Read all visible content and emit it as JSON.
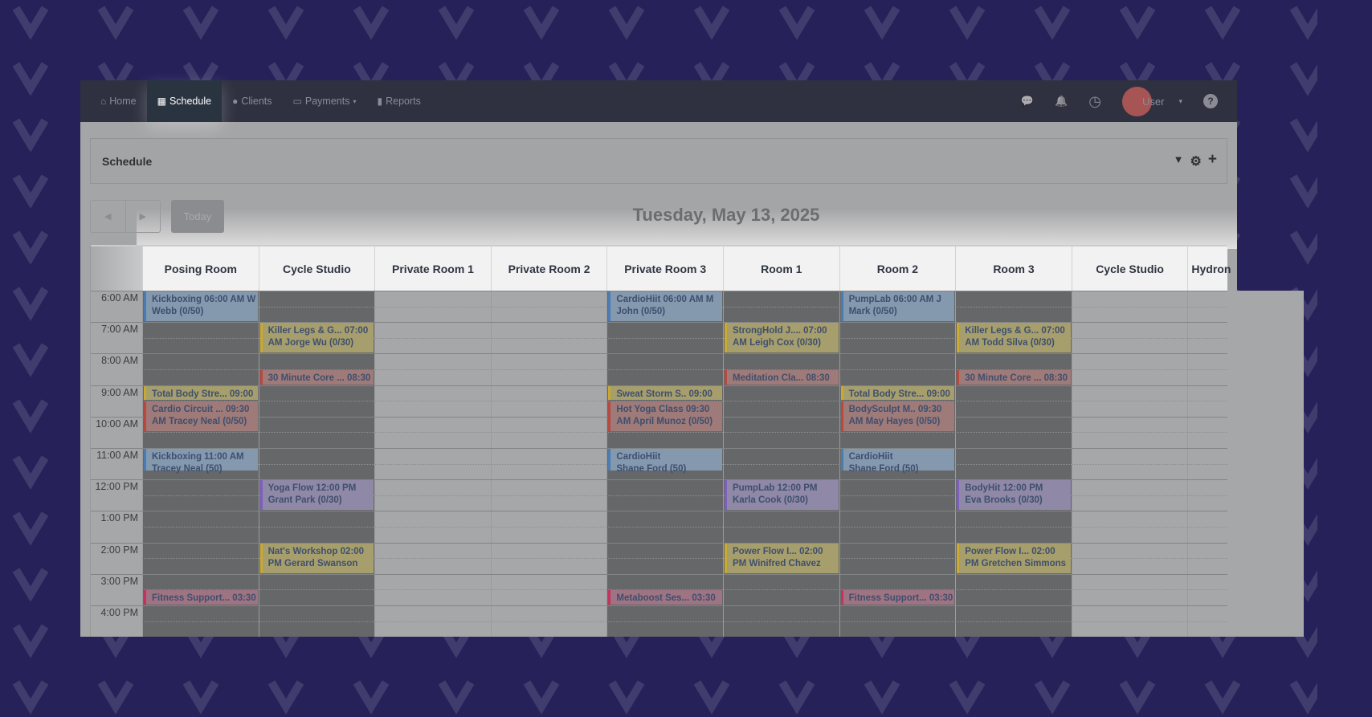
{
  "nav": {
    "items": [
      {
        "label": "Home",
        "icon": "home-icon",
        "glyph": "⌂",
        "active": false
      },
      {
        "label": "Schedule",
        "icon": "calendar-icon",
        "glyph": "▦",
        "active": true
      },
      {
        "label": "Clients",
        "icon": "user-icon",
        "glyph": "●",
        "active": false
      },
      {
        "label": "Payments",
        "icon": "credit-card-icon",
        "glyph": "▭",
        "active": false,
        "caret": "▾"
      },
      {
        "label": "Reports",
        "icon": "bar-chart-icon",
        "glyph": "▮",
        "active": false
      }
    ],
    "user": "User",
    "avatar_color": "#a65454",
    "right_icons": {
      "chat": "💬",
      "bell": "🔔",
      "clock": "◷",
      "caret": "▾",
      "help": "?"
    }
  },
  "card": {
    "title": "Schedule",
    "tools": {
      "filter": "▼",
      "settings": "⚙",
      "add": "+"
    }
  },
  "toolbar": {
    "prev": "◀",
    "next": "▶",
    "today": "Today",
    "date": "Tuesday, May 13, 2025"
  },
  "columns": [
    {
      "name": "Posing Room",
      "available": true
    },
    {
      "name": "Cycle Studio",
      "available": true
    },
    {
      "name": "Private Room 1",
      "available": false
    },
    {
      "name": "Private Room 2",
      "available": false
    },
    {
      "name": "Private Room 3",
      "available": true
    },
    {
      "name": "Room 1",
      "available": true
    },
    {
      "name": "Room 2",
      "available": true
    },
    {
      "name": "Room 3",
      "available": true
    },
    {
      "name": "Cycle Studio",
      "available": false
    },
    {
      "name": "Hydron",
      "available": false
    }
  ],
  "times": [
    "6:00 AM",
    "7:00 AM",
    "8:00 AM",
    "9:00 AM",
    "10:00 AM",
    "11:00 AM",
    "12:00 PM",
    "1:00 PM",
    "2:00 PM",
    "3:00 PM",
    "4:00 PM"
  ],
  "colors": {
    "blue": {
      "bg": "#8498ae",
      "border": "#4a7cb4"
    },
    "yellow": {
      "bg": "#a69e6c",
      "border": "#c9a92e"
    },
    "red": {
      "bg": "#9e7a79",
      "border": "#b9483f"
    },
    "purple": {
      "bg": "#8f88a6",
      "border": "#7e5fc0"
    },
    "pink": {
      "bg": "#9e7382",
      "border": "#c4325e"
    }
  },
  "events": [
    {
      "col": 0,
      "start": "06:00",
      "end": "07:00",
      "color": "blue",
      "lines": [
        "Kickboxing 06:00 AM W",
        "Webb (0/50)"
      ]
    },
    {
      "col": 0,
      "start": "09:00",
      "end": "09:30",
      "color": "yellow",
      "lines": [
        "Total Body Stre... 09:00"
      ]
    },
    {
      "col": 0,
      "start": "09:30",
      "end": "10:30",
      "color": "red",
      "lines": [
        "Cardio Circuit ... 09:30",
        "AM Tracey Neal  (0/50)"
      ]
    },
    {
      "col": 0,
      "start": "11:00",
      "end": "11:45",
      "color": "blue",
      "lines": [
        "Kickboxing 11:00 AM",
        "Tracey Neal  (50)"
      ]
    },
    {
      "col": 0,
      "start": "15:30",
      "end": "16:00",
      "color": "pink",
      "lines": [
        "Fitness Support... 03:30"
      ]
    },
    {
      "col": 1,
      "start": "07:00",
      "end": "08:00",
      "color": "yellow",
      "lines": [
        "Killer Legs & G... 07:00",
        "AM Jorge Wu    (0/30)"
      ]
    },
    {
      "col": 1,
      "start": "08:30",
      "end": "09:00",
      "color": "red",
      "lines": [
        "30 Minute Core ... 08:30"
      ]
    },
    {
      "col": 1,
      "start": "12:00",
      "end": "13:00",
      "color": "purple",
      "lines": [
        "Yoga Flow 12:00 PM",
        "Grant Park  (0/30)"
      ]
    },
    {
      "col": 1,
      "start": "14:00",
      "end": "15:00",
      "color": "yellow",
      "lines": [
        "Nat's Workshop 02:00",
        "PM Gerard Swanson"
      ]
    },
    {
      "col": 4,
      "start": "06:00",
      "end": "07:00",
      "color": "blue",
      "lines": [
        "CardioHiit 06:00 AM M",
        "John  (0/50)"
      ]
    },
    {
      "col": 4,
      "start": "09:00",
      "end": "09:30",
      "color": "yellow",
      "lines": [
        "Sweat Storm S..  09:00"
      ]
    },
    {
      "col": 4,
      "start": "09:30",
      "end": "10:30",
      "color": "red",
      "lines": [
        "Hot Yoga Class  09:30",
        "AM April Munoz  (0/50)"
      ]
    },
    {
      "col": 4,
      "start": "11:00",
      "end": "11:45",
      "color": "blue",
      "lines": [
        "CardioHiit",
        "Shane Ford  (50)"
      ]
    },
    {
      "col": 4,
      "start": "15:30",
      "end": "16:00",
      "color": "pink",
      "lines": [
        "Metaboost Ses...  03:30"
      ]
    },
    {
      "col": 5,
      "start": "07:00",
      "end": "08:00",
      "color": "yellow",
      "lines": [
        "StrongHold J.... 07:00",
        "AM Leigh Cox    (0/30)"
      ]
    },
    {
      "col": 5,
      "start": "08:30",
      "end": "09:00",
      "color": "red",
      "lines": [
        "Meditation Cla... 08:30"
      ]
    },
    {
      "col": 5,
      "start": "12:00",
      "end": "13:00",
      "color": "purple",
      "lines": [
        "PumpLab 12:00 PM",
        "Karla Cook  (0/30)"
      ]
    },
    {
      "col": 5,
      "start": "14:00",
      "end": "15:00",
      "color": "yellow",
      "lines": [
        "Power Flow I...  02:00",
        "PM Winifred Chavez"
      ]
    },
    {
      "col": 6,
      "start": "06:00",
      "end": "07:00",
      "color": "blue",
      "lines": [
        "PumpLab   06:00 AM J",
        "Mark (0/50)"
      ]
    },
    {
      "col": 6,
      "start": "09:00",
      "end": "09:30",
      "color": "yellow",
      "lines": [
        "Total Body Stre... 09:00"
      ]
    },
    {
      "col": 6,
      "start": "09:30",
      "end": "10:30",
      "color": "red",
      "lines": [
        "BodySculpt M..  09:30",
        "AM May Hayes     (0/50)"
      ]
    },
    {
      "col": 6,
      "start": "11:00",
      "end": "11:45",
      "color": "blue",
      "lines": [
        "CardioHiit",
        "Shane Ford  (50)"
      ]
    },
    {
      "col": 6,
      "start": "15:30",
      "end": "16:00",
      "color": "pink",
      "lines": [
        "Fitness Support... 03:30"
      ]
    },
    {
      "col": 7,
      "start": "07:00",
      "end": "08:00",
      "color": "yellow",
      "lines": [
        "Killer Legs & G... 07:00",
        "AM Todd Silva   (0/30)"
      ]
    },
    {
      "col": 7,
      "start": "08:30",
      "end": "09:00",
      "color": "red",
      "lines": [
        "30 Minute Core ... 08:30"
      ]
    },
    {
      "col": 7,
      "start": "12:00",
      "end": "13:00",
      "color": "purple",
      "lines": [
        "BodyHit    12:00 PM",
        "Eva Brooks  (0/30)"
      ]
    },
    {
      "col": 7,
      "start": "14:00",
      "end": "15:00",
      "color": "yellow",
      "lines": [
        "Power Flow I...  02:00",
        "PM Gretchen Simmons"
      ]
    }
  ]
}
